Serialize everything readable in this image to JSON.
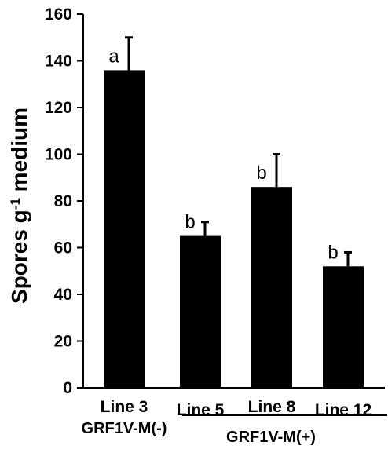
{
  "chart_data": {
    "type": "bar",
    "categories": [
      "Line 3",
      "Line 5",
      "Line 8",
      "Line 12"
    ],
    "values": [
      136,
      65,
      86,
      52
    ],
    "error_upper": [
      150,
      71,
      100,
      58
    ],
    "significance_letters": [
      "a",
      "b",
      "b",
      "b"
    ],
    "groups": [
      {
        "label": "GRF1V-M(-)",
        "categories": [
          "Line 3"
        ]
      },
      {
        "label": "GRF1V-M(+)",
        "categories": [
          "Line 5",
          "Line 8",
          "Line 12"
        ]
      }
    ],
    "ylabel": {
      "main": "Spores g",
      "superscript": "-1",
      "suffix": " medium"
    },
    "xlabel": "",
    "ylim": [
      0,
      160
    ],
    "yticks": [
      0,
      20,
      40,
      60,
      80,
      100,
      120,
      140,
      160
    ],
    "grid": false,
    "bar_color": "#000000"
  }
}
